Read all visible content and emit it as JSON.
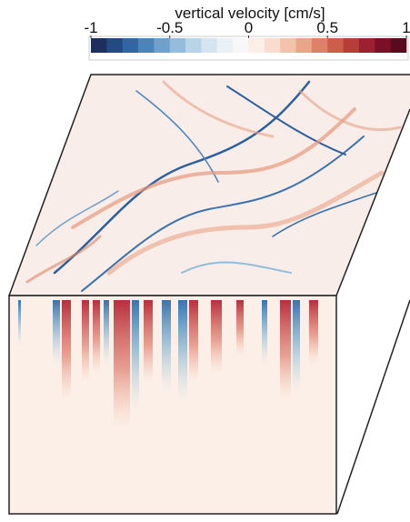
{
  "colorbar": {
    "label": "vertical velocity [cm/s]",
    "lim": [
      -1,
      1
    ],
    "ticks": [
      -1,
      -0.5,
      0,
      0.5,
      1
    ],
    "colors": [
      "#1c2f5e",
      "#244a85",
      "#2f66a3",
      "#4a84bb",
      "#6ea1cd",
      "#94bddc",
      "#b8d4e7",
      "#d5e5f0",
      "#e9f1f6",
      "#f7f7f7",
      "#fbefe8",
      "#f8dccd",
      "#f3c2aa",
      "#eaa487",
      "#dd8267",
      "#cc5f4c",
      "#b63e38",
      "#9a2130",
      "#7a1028",
      "#5a0a1e"
    ]
  }
}
